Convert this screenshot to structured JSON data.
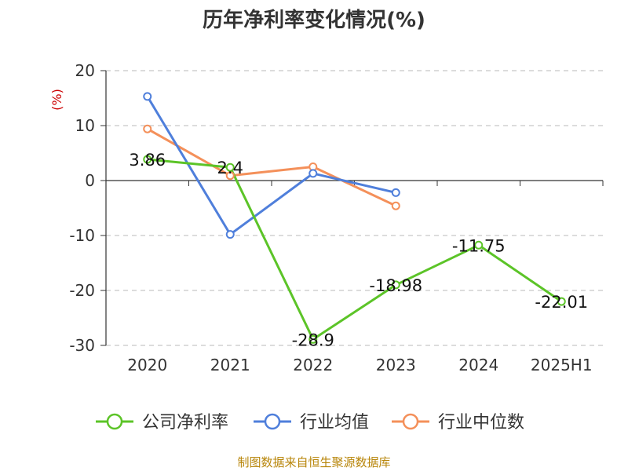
{
  "chart_data": {
    "type": "line",
    "title": "历年净利率变化情况(%)",
    "ylabel": "(%)",
    "categories": [
      "2020",
      "2021",
      "2022",
      "2023",
      "2024",
      "2025H1"
    ],
    "ylim": [
      -30,
      20
    ],
    "yticks": [
      20,
      10,
      0,
      -10,
      -20,
      -30
    ],
    "grid": true,
    "legend_position": "bottom",
    "series": [
      {
        "name": "公司净利率",
        "color": "#5cc428",
        "values": [
          3.86,
          2.4,
          -28.9,
          -18.98,
          -11.75,
          -22.01
        ],
        "labels": [
          "3.86",
          "2.4",
          "-28.9",
          "-18.98",
          "-11.75",
          "-22.01"
        ]
      },
      {
        "name": "行业均值",
        "color": "#4f7fdb",
        "values": [
          15.3,
          -9.8,
          1.3,
          -2.2,
          null,
          null
        ]
      },
      {
        "name": "行业中位数",
        "color": "#f4905a",
        "values": [
          9.4,
          0.9,
          2.5,
          -4.6,
          null,
          null
        ]
      }
    ]
  },
  "source": "制图数据来自恒生聚源数据库"
}
